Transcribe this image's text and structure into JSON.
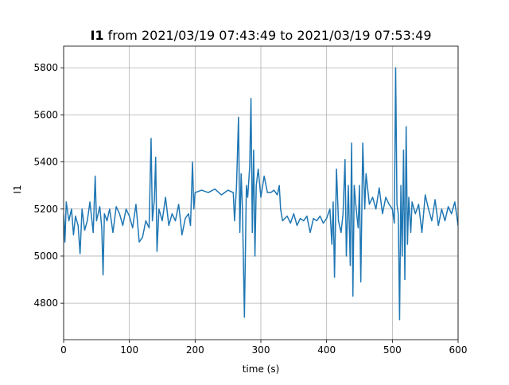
{
  "chart_data": {
    "type": "line",
    "title_bold": "I1",
    "title": "from 2021/03/19 07:43:49 to 2021/03/19 07:53:49",
    "x_label": "time (s)",
    "y_label": "I1",
    "xlim": [
      0,
      600
    ],
    "xticks": [
      0,
      100,
      200,
      300,
      400,
      500,
      600
    ],
    "ylim": [
      4645,
      5892
    ],
    "yticks": [
      4800,
      5000,
      5200,
      5400,
      5600,
      5800
    ],
    "grid": true,
    "x": [
      0,
      2,
      4,
      8,
      12,
      15,
      18,
      22,
      25,
      28,
      32,
      36,
      40,
      45,
      48,
      50,
      55,
      58,
      60,
      62,
      66,
      70,
      75,
      80,
      85,
      90,
      95,
      100,
      105,
      110,
      115,
      120,
      125,
      130,
      133,
      135,
      138,
      140,
      142,
      145,
      150,
      155,
      160,
      165,
      170,
      175,
      180,
      185,
      190,
      193,
      196,
      198,
      200,
      210,
      220,
      230,
      240,
      250,
      258,
      260,
      263,
      266,
      268,
      270,
      272,
      275,
      278,
      280,
      283,
      285,
      287,
      289,
      291,
      293,
      296,
      300,
      305,
      310,
      315,
      320,
      325,
      328,
      330,
      333,
      340,
      345,
      350,
      355,
      360,
      365,
      370,
      375,
      380,
      385,
      390,
      395,
      400,
      405,
      408,
      410,
      412,
      415,
      418,
      422,
      425,
      428,
      430,
      433,
      436,
      438,
      440,
      442,
      445,
      448,
      450,
      452,
      455,
      458,
      460,
      465,
      470,
      475,
      480,
      485,
      490,
      495,
      500,
      503,
      505,
      507,
      509,
      511,
      513,
      515,
      517,
      519,
      521,
      523,
      525,
      528,
      530,
      535,
      540,
      545,
      550,
      555,
      560,
      565,
      570,
      575,
      580,
      585,
      590,
      595,
      600
    ],
    "series": [
      {
        "name": "I1",
        "color": "#1f77b4",
        "values": [
          5180,
          5060,
          5230,
          5150,
          5200,
          5090,
          5170,
          5130,
          5010,
          5200,
          5110,
          5150,
          5230,
          5100,
          5340,
          5150,
          5210,
          5120,
          4920,
          5180,
          5150,
          5200,
          5100,
          5210,
          5180,
          5130,
          5200,
          5170,
          5120,
          5220,
          5060,
          5080,
          5150,
          5120,
          5500,
          5150,
          5240,
          5420,
          5020,
          5200,
          5150,
          5250,
          5130,
          5180,
          5150,
          5220,
          5090,
          5160,
          5180,
          5130,
          5400,
          5200,
          5270,
          5280,
          5270,
          5285,
          5260,
          5280,
          5270,
          5150,
          5300,
          5590,
          5100,
          5350,
          5200,
          4740,
          5300,
          5250,
          5380,
          5670,
          5100,
          5450,
          5000,
          5300,
          5370,
          5250,
          5340,
          5270,
          5270,
          5280,
          5260,
          5300,
          5200,
          5150,
          5170,
          5140,
          5180,
          5130,
          5160,
          5150,
          5170,
          5100,
          5160,
          5150,
          5170,
          5140,
          5160,
          5200,
          5050,
          5230,
          4910,
          5370,
          5150,
          5100,
          5180,
          5410,
          5000,
          5300,
          4960,
          5480,
          4830,
          5300,
          5200,
          5120,
          5300,
          4890,
          5480,
          5200,
          5350,
          5220,
          5250,
          5200,
          5290,
          5180,
          5250,
          5220,
          5200,
          5140,
          5800,
          5220,
          5180,
          4730,
          5300,
          5000,
          5450,
          4900,
          5550,
          5050,
          5250,
          5100,
          5230,
          5180,
          5220,
          5100,
          5260,
          5200,
          5150,
          5240,
          5130,
          5200,
          5150,
          5210,
          5180,
          5230,
          5130
        ]
      }
    ]
  }
}
